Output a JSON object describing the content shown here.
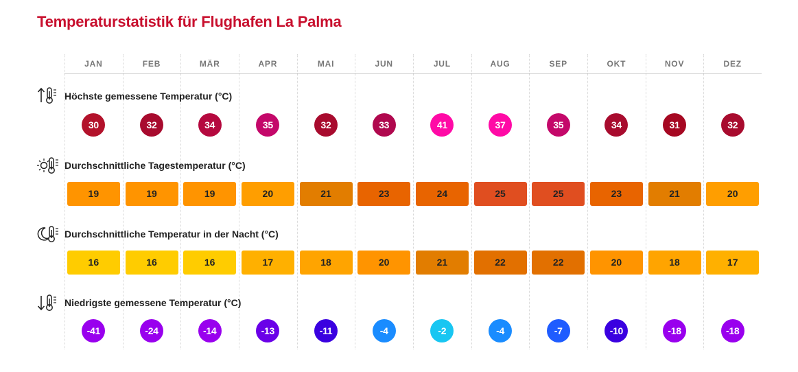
{
  "title": "Temperaturstatistik für Flughafen La Palma",
  "months": [
    "JAN",
    "FEB",
    "MÄR",
    "APR",
    "MAI",
    "JUN",
    "JUL",
    "AUG",
    "SEP",
    "OKT",
    "NOV",
    "DEZ"
  ],
  "sections": [
    {
      "id": "max",
      "label": "Höchste gemessene Temperatur (°C)",
      "icon": "thermometer-up-icon",
      "kind": "circle",
      "values": [
        "30",
        "32",
        "34",
        "35",
        "32",
        "33",
        "41",
        "37",
        "35",
        "34",
        "31",
        "32"
      ],
      "colors": [
        "#b3122b",
        "#a80b2e",
        "#b5093f",
        "#c4086a",
        "#a80b2e",
        "#b0084e",
        "#ff0aa6",
        "#ff0aa6",
        "#c4086a",
        "#a80b2e",
        "#a60822",
        "#a80b2e"
      ],
      "text_color": "#ffffff"
    },
    {
      "id": "day",
      "label": "Durchschnittliche Tagestemperatur (°C)",
      "icon": "sun-thermometer-icon",
      "kind": "box",
      "values": [
        "19",
        "19",
        "19",
        "20",
        "21",
        "23",
        "24",
        "25",
        "25",
        "23",
        "21",
        "20"
      ],
      "colors": [
        "#ff9400",
        "#ff9400",
        "#ff9400",
        "#ff9e00",
        "#e27d00",
        "#e86400",
        "#e86400",
        "#e04e20",
        "#e04e20",
        "#e86400",
        "#e27d00",
        "#ff9e00"
      ],
      "text_color": "#222222"
    },
    {
      "id": "night",
      "label": "Durchschnittliche Temperatur in der Nacht (°C)",
      "icon": "moon-thermometer-icon",
      "kind": "box",
      "values": [
        "16",
        "16",
        "16",
        "17",
        "18",
        "20",
        "21",
        "22",
        "22",
        "20",
        "18",
        "17"
      ],
      "colors": [
        "#ffcc00",
        "#ffcc00",
        "#ffcc00",
        "#ffb000",
        "#ffa400",
        "#ff9400",
        "#e27d00",
        "#e27000",
        "#e27000",
        "#ff9400",
        "#ffa400",
        "#ffb000"
      ],
      "text_color": "#222222"
    },
    {
      "id": "min",
      "label": "Niedrigste gemessene Temperatur (°C)",
      "icon": "thermometer-down-icon",
      "kind": "circle",
      "values": [
        "-41",
        "-24",
        "-14",
        "-13",
        "-11",
        "-4",
        "-2",
        "-4",
        "-7",
        "-10",
        "-18",
        "-18"
      ],
      "colors": [
        "#9900ee",
        "#9900ee",
        "#9900ee",
        "#6a00e8",
        "#3a00e0",
        "#1a8cff",
        "#18c6f2",
        "#1a8cff",
        "#1f5cff",
        "#3a00e0",
        "#9900ee",
        "#9900ee"
      ],
      "text_color": "#ffffff"
    }
  ]
}
